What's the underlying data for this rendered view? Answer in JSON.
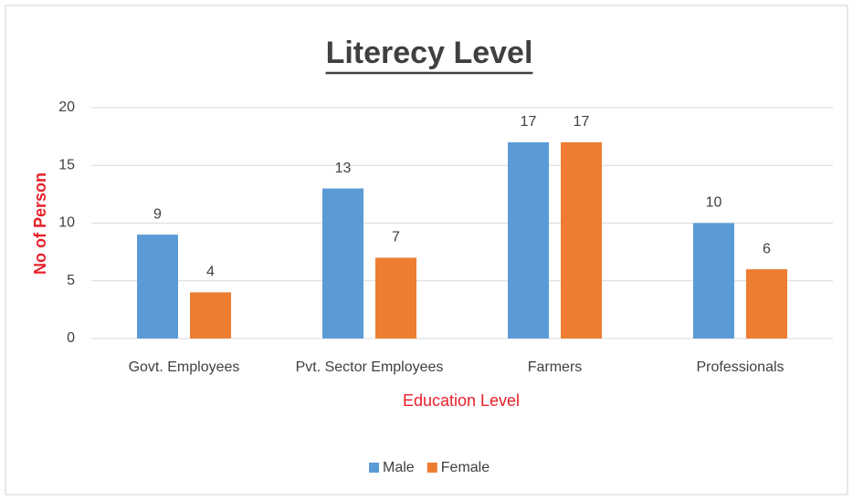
{
  "chart_data": {
    "type": "bar",
    "title": "Literecy Level",
    "x_label": "Education Level",
    "y_label": "No of Person",
    "categories": [
      "Govt. Employees",
      "Pvt. Sector Employees",
      "Farmers",
      "Professionals"
    ],
    "series": [
      {
        "name": "Male",
        "color": "#5b9bd5",
        "values": [
          9,
          13,
          17,
          10
        ]
      },
      {
        "name": "Female",
        "color": "#ed7d31",
        "values": [
          4,
          7,
          17,
          6
        ]
      }
    ],
    "ylim": [
      0,
      20
    ],
    "yticks": [
      0,
      5,
      10,
      15,
      20
    ],
    "grid": true,
    "legend": "bottom"
  }
}
